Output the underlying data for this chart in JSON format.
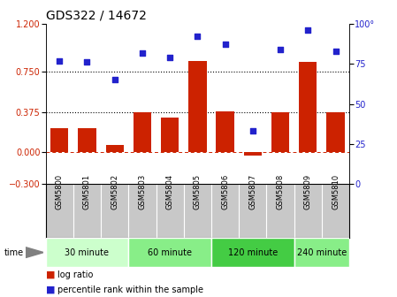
{
  "title": "GDS322 / 14672",
  "samples": [
    "GSM5800",
    "GSM5801",
    "GSM5802",
    "GSM5803",
    "GSM5804",
    "GSM5805",
    "GSM5806",
    "GSM5807",
    "GSM5808",
    "GSM5809",
    "GSM5810"
  ],
  "log_ratio": [
    0.22,
    0.22,
    0.07,
    0.375,
    0.32,
    0.85,
    0.38,
    -0.03,
    0.375,
    0.84,
    0.375
  ],
  "percentile": [
    77,
    76,
    65,
    82,
    79,
    92,
    87,
    33,
    84,
    96,
    83
  ],
  "ylim_left": [
    -0.3,
    1.2
  ],
  "ylim_right": [
    0,
    100
  ],
  "yticks_left": [
    -0.3,
    0,
    0.375,
    0.75,
    1.2
  ],
  "yticks_right": [
    0,
    25,
    50,
    75,
    100
  ],
  "hlines": [
    0.375,
    0.75
  ],
  "bar_color": "#cc2200",
  "dot_color": "#2222cc",
  "zero_line_color": "#cc2200",
  "hline_color": "black",
  "groups": [
    {
      "label": "30 minute",
      "start": 0,
      "end": 3,
      "color": "#ccffcc"
    },
    {
      "label": "60 minute",
      "start": 3,
      "end": 6,
      "color": "#88ee88"
    },
    {
      "label": "120 minute",
      "start": 6,
      "end": 9,
      "color": "#44cc44"
    },
    {
      "label": "240 minute",
      "start": 9,
      "end": 11,
      "color": "#88ee88"
    }
  ],
  "time_label": "time",
  "legend_bar_label": "log ratio",
  "legend_dot_label": "percentile rank within the sample",
  "title_fontsize": 10,
  "tick_fontsize": 7,
  "label_fontsize": 7,
  "sample_box_color": "#c8c8c8",
  "sample_text_fontsize": 6
}
